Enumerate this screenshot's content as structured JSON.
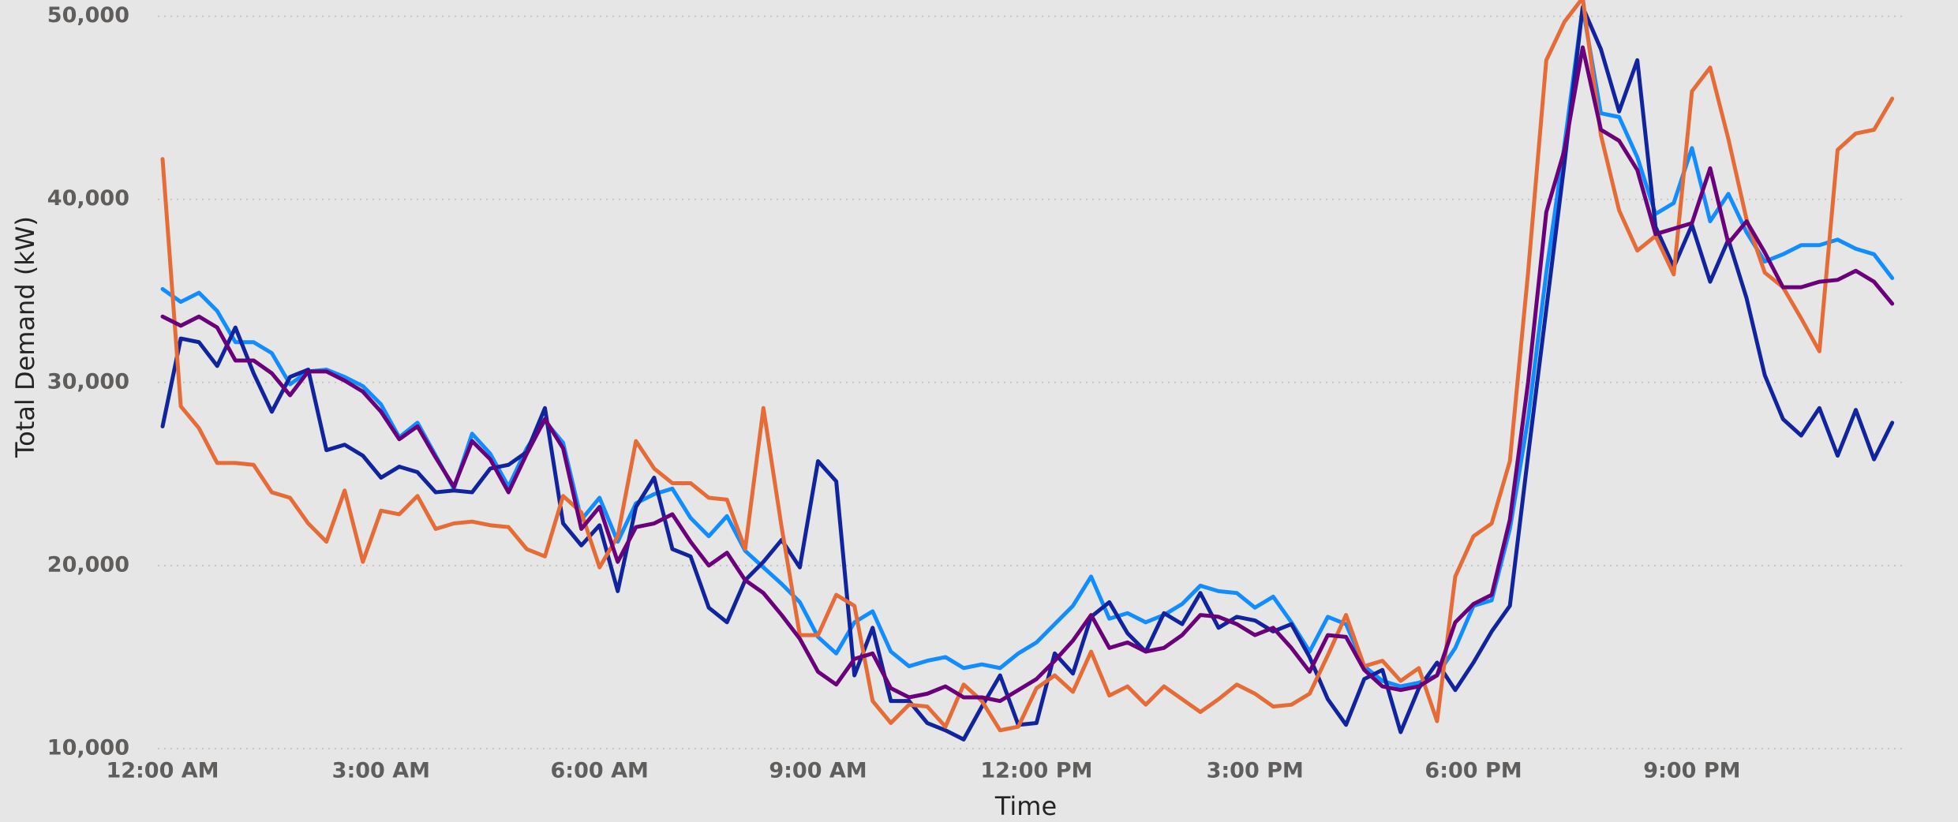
{
  "chart_data": {
    "type": "line",
    "x_label": "Time",
    "y_label": "Total Demand (kW)",
    "categories": [
      "12:00 AM",
      null,
      null,
      null,
      null,
      null,
      null,
      null,
      null,
      null,
      null,
      null,
      "3:00 AM",
      null,
      null,
      null,
      null,
      null,
      null,
      null,
      null,
      null,
      null,
      null,
      "6:00 AM",
      null,
      null,
      null,
      null,
      null,
      null,
      null,
      null,
      null,
      null,
      null,
      "9:00 AM",
      null,
      null,
      null,
      null,
      null,
      null,
      null,
      null,
      null,
      null,
      null,
      "12:00 PM",
      null,
      null,
      null,
      null,
      null,
      null,
      null,
      null,
      null,
      null,
      null,
      "3:00 PM",
      null,
      null,
      null,
      null,
      null,
      null,
      null,
      null,
      null,
      null,
      null,
      "6:00 PM",
      null,
      null,
      null,
      null,
      null,
      null,
      null,
      null,
      null,
      null,
      null,
      "9:00 PM",
      null,
      null,
      null,
      null,
      null,
      null,
      null,
      null,
      null,
      null,
      null
    ],
    "ylim": [
      10000,
      50000
    ],
    "yticks": [
      {
        "value": 10000,
        "label": "10,000"
      },
      {
        "value": 20000,
        "label": "20,000"
      },
      {
        "value": 30000,
        "label": "30,000"
      },
      {
        "value": 40000,
        "label": "40,000"
      },
      {
        "value": 50000,
        "label": "50,000"
      }
    ],
    "grid": true,
    "series": [
      {
        "color": "#118DFF",
        "values": [
          35100,
          34400,
          34900,
          33900,
          32200,
          32200,
          31600,
          29900,
          30600,
          30700,
          30300,
          29800,
          28800,
          27000,
          27800,
          26000,
          24200,
          27200,
          26100,
          24300,
          26400,
          27900,
          26700,
          22500,
          23700,
          21300,
          23400,
          23900,
          24200,
          22600,
          21600,
          22700,
          20800,
          19900,
          19000,
          18000,
          16100,
          15200,
          16900,
          17500,
          15300,
          14500,
          14800,
          15000,
          14400,
          14600,
          14400,
          15200,
          15800,
          16800,
          17800,
          19400,
          17100,
          17400,
          16900,
          17300,
          17900,
          18900,
          18600,
          18500,
          17700,
          18300,
          16900,
          15300,
          17200,
          16800,
          14500,
          13700,
          13400,
          13600,
          14000,
          15500,
          17800,
          18100,
          22000,
          28000,
          36000,
          43000,
          50500,
          44700,
          44500,
          42300,
          39200,
          39800,
          42800,
          38800,
          40300,
          38200,
          36600,
          37000,
          37500,
          37500,
          37800,
          37300,
          37000,
          35700
        ]
      },
      {
        "color": "#12239E",
        "values": [
          27600,
          32400,
          32200,
          30900,
          33000,
          30500,
          28400,
          30300,
          30700,
          26300,
          26600,
          26000,
          24800,
          25400,
          25100,
          24000,
          24100,
          24000,
          25300,
          25500,
          26200,
          28600,
          22300,
          21100,
          22200,
          18600,
          23200,
          24800,
          20900,
          20500,
          17700,
          16900,
          19200,
          20200,
          21400,
          19900,
          25700,
          24600,
          14000,
          16600,
          12600,
          12600,
          11400,
          11000,
          10500,
          12300,
          14000,
          11300,
          11400,
          15200,
          14100,
          17200,
          18000,
          16300,
          15300,
          17400,
          16800,
          18500,
          16600,
          17200,
          17000,
          16400,
          16800,
          15000,
          12700,
          11300,
          13800,
          14300,
          10900,
          13300,
          14700,
          13200,
          14700,
          16400,
          17800,
          26000,
          34000,
          42000,
          50500,
          48200,
          44800,
          47600,
          38500,
          36300,
          38600,
          35500,
          37800,
          34600,
          30400,
          28000,
          27100,
          28600,
          26000,
          28500,
          25800,
          27800
        ]
      },
      {
        "color": "#E66C37",
        "values": [
          42200,
          28700,
          27500,
          25600,
          25600,
          25500,
          24000,
          23700,
          22300,
          21300,
          24100,
          20200,
          23000,
          22800,
          23800,
          22000,
          22300,
          22400,
          22200,
          22100,
          20900,
          20500,
          23800,
          22900,
          19900,
          21600,
          26800,
          25300,
          24500,
          24500,
          23700,
          23600,
          20900,
          28600,
          22100,
          16200,
          16200,
          18400,
          17800,
          12600,
          11400,
          12400,
          12300,
          11200,
          13500,
          12600,
          11000,
          11200,
          13300,
          14000,
          13100,
          15300,
          12900,
          13400,
          12400,
          13400,
          12700,
          12000,
          12700,
          13500,
          13000,
          12300,
          12400,
          13000,
          15100,
          17300,
          14500,
          14800,
          13700,
          14400,
          11500,
          19400,
          21600,
          22300,
          25700,
          36000,
          47600,
          49700,
          51000,
          43500,
          39400,
          37200,
          38000,
          35900,
          45900,
          47200,
          43300,
          38900,
          36000,
          35200,
          33500,
          31700,
          42700,
          43600,
          43800,
          45500
        ]
      },
      {
        "color": "#6B007B",
        "values": [
          33600,
          33100,
          33600,
          33000,
          31200,
          31200,
          30500,
          29300,
          30600,
          30600,
          30100,
          29500,
          28400,
          26900,
          27600,
          25900,
          24300,
          26800,
          25800,
          24000,
          26100,
          28000,
          26400,
          22000,
          23200,
          20200,
          22100,
          22300,
          22800,
          21300,
          20000,
          20700,
          19200,
          18500,
          17300,
          16000,
          14200,
          13500,
          14900,
          15200,
          13300,
          12800,
          13000,
          13400,
          12800,
          12800,
          12600,
          13200,
          13800,
          14800,
          15900,
          17300,
          15500,
          15800,
          15300,
          15500,
          16200,
          17300,
          17200,
          16800,
          16200,
          16600,
          15500,
          14200,
          16200,
          16100,
          14300,
          13400,
          13200,
          13400,
          14000,
          16900,
          17900,
          18400,
          22500,
          30000,
          39300,
          42700,
          48300,
          43800,
          43200,
          41600,
          38100,
          38400,
          38700,
          41700,
          37600,
          38800,
          37100,
          35200,
          35200,
          35500,
          35600,
          36100,
          35500,
          34300
        ]
      }
    ]
  }
}
